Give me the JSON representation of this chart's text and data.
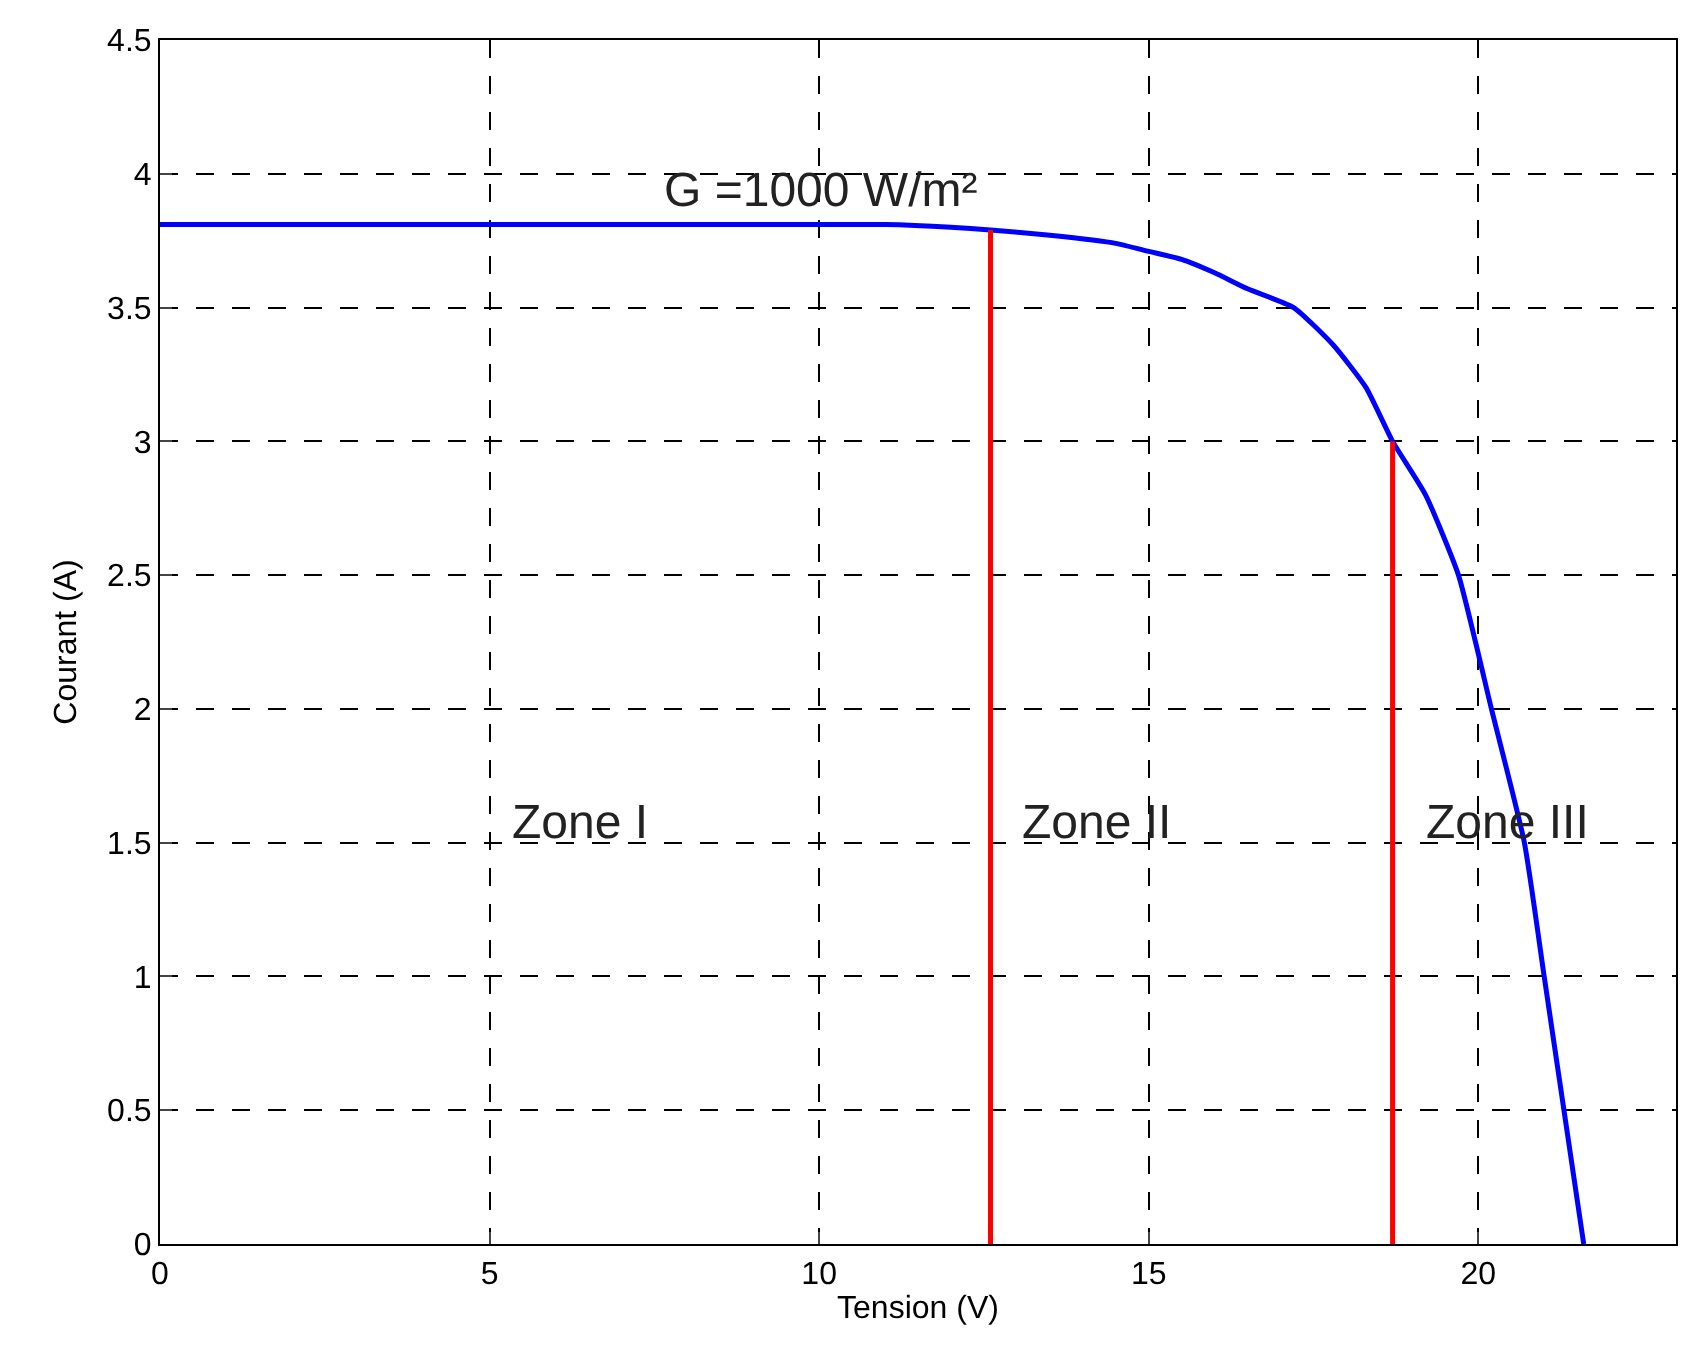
{
  "chart_data": {
    "type": "line",
    "xlabel": "Tension (V)",
    "ylabel": "Courant (A)",
    "xlim": [
      0,
      23
    ],
    "xticks": [
      0,
      5,
      10,
      15,
      20
    ],
    "ylim": [
      0,
      4.5
    ],
    "yticks": [
      0,
      0.5,
      1,
      1.5,
      2,
      2.5,
      3,
      3.5,
      4,
      4.5
    ],
    "grid": true,
    "line_style": "solid",
    "marker": "none",
    "series": [
      {
        "color": "#0000ff",
        "x": [
          0,
          4,
          8,
          11,
          12,
          12.6,
          13.5,
          14.5,
          15,
          15.5,
          16,
          16.5,
          17.2,
          17.8,
          18.3,
          18.7,
          19.2,
          19.7,
          20.2,
          20.7,
          21,
          21.3,
          21.6
        ],
        "values": [
          3.81,
          3.81,
          3.81,
          3.81,
          3.8,
          3.79,
          3.77,
          3.74,
          3.71,
          3.68,
          3.63,
          3.57,
          3.5,
          3.36,
          3.2,
          3.0,
          2.8,
          2.5,
          2,
          1.5,
          1,
          0.5,
          0
        ]
      },
      {
        "color": "#ff0000",
        "x": [
          12.6,
          12.6
        ],
        "values": [
          0,
          3.79
        ]
      },
      {
        "color": "#ff0000",
        "x": [
          18.7,
          18.7
        ],
        "values": [
          0,
          3.0
        ]
      }
    ],
    "annotations": [
      "G =1000 W/m²",
      "Zone I",
      "Zone II",
      "Zone III"
    ]
  }
}
